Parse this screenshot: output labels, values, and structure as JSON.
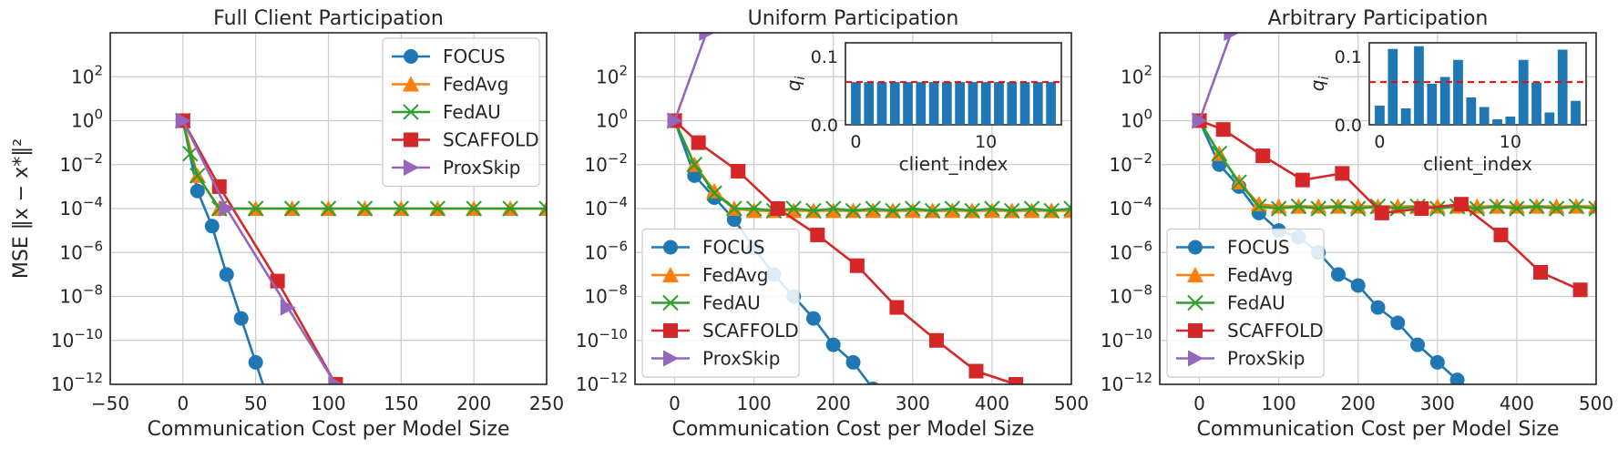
{
  "colors": {
    "FOCUS": "#1f77b4",
    "FedAvg": "#ff7f0e",
    "FedAU": "#2ca02c",
    "SCAFFOLD": "#d62728",
    "ProxSkip": "#9467bd",
    "grid": "#cccccc",
    "bar": "#1f77b4",
    "dashed": "#ff0000"
  },
  "chart_data": [
    {
      "type": "line",
      "title": "Full Client Participation",
      "xlabel": "Communication Cost per Model Size",
      "ylabel": "MSE ‖x − x*‖²",
      "yscale": "log",
      "xlim": [
        -50,
        250
      ],
      "ylim_exp": [
        -12,
        4
      ],
      "xticks": [
        "−50",
        "0",
        "50",
        "100",
        "150",
        "200",
        "250"
      ],
      "xtick_values": [
        -50,
        0,
        50,
        100,
        150,
        200,
        250
      ],
      "legend": "upper right",
      "series": [
        {
          "name": "FOCUS",
          "marker": "circle",
          "x": [
            0,
            10,
            20,
            30,
            40,
            50,
            60
          ],
          "log10y": [
            0,
            -3.2,
            -4.8,
            -7,
            -9,
            -11,
            -13
          ]
        },
        {
          "name": "FedAvg",
          "marker": "triangle",
          "x": [
            0,
            10,
            25,
            50,
            75,
            100,
            125,
            150,
            175,
            200,
            225,
            250
          ],
          "log10y": [
            0,
            -2.5,
            -4,
            -4,
            -4,
            -4,
            -4,
            -4,
            -4,
            -4,
            -4,
            -4
          ]
        },
        {
          "name": "FedAU",
          "marker": "x",
          "x": [
            0,
            5,
            10,
            25,
            50,
            75,
            100,
            125,
            150,
            175,
            200,
            225,
            250
          ],
          "log10y": [
            0,
            -1.5,
            -2.5,
            -4,
            -4,
            -4,
            -4,
            -4,
            -4,
            -4,
            -4,
            -4,
            -4
          ]
        },
        {
          "name": "SCAFFOLD",
          "marker": "square",
          "x": [
            0,
            25,
            65,
            105
          ],
          "log10y": [
            0,
            -3,
            -7.3,
            -12
          ]
        },
        {
          "name": "ProxSkip",
          "marker": "triangle-right",
          "x": [
            0,
            30,
            72,
            105
          ],
          "log10y": [
            0,
            -4,
            -8.5,
            -12
          ]
        }
      ]
    },
    {
      "type": "line",
      "title": "Uniform Participation",
      "xlabel": "Communication Cost per Model Size",
      "yscale": "log",
      "xlim": [
        -50,
        500
      ],
      "ylim_exp": [
        -12,
        4
      ],
      "xticks": [
        "0",
        "100",
        "200",
        "300",
        "400",
        "500"
      ],
      "xtick_values": [
        0,
        100,
        200,
        300,
        400,
        500
      ],
      "legend": "lower left",
      "series": [
        {
          "name": "FOCUS",
          "marker": "circle",
          "x": [
            0,
            25,
            50,
            75,
            100,
            125,
            150,
            175,
            200,
            225,
            250
          ],
          "log10y": [
            0,
            -2.5,
            -3.5,
            -4.5,
            -5.8,
            -7,
            -8,
            -9,
            -10.2,
            -11,
            -12.2
          ]
        },
        {
          "name": "FedAvg",
          "marker": "triangle",
          "x": [
            0,
            25,
            50,
            75,
            100,
            125,
            150,
            175,
            200,
            225,
            250,
            275,
            300,
            325,
            350,
            375,
            400,
            425,
            450,
            475,
            500
          ],
          "log10y": [
            0,
            -2,
            -3.2,
            -4,
            -4.1,
            -4.1,
            -4.1,
            -4.1,
            -4.1,
            -4.1,
            -4.1,
            -4.1,
            -4.1,
            -4.1,
            -4.1,
            -4.1,
            -4.1,
            -4.1,
            -4.1,
            -4.1,
            -4.1
          ]
        },
        {
          "name": "FedAU",
          "marker": "x",
          "x": [
            0,
            25,
            50,
            75,
            100,
            125,
            150,
            175,
            200,
            225,
            250,
            275,
            300,
            325,
            350,
            375,
            400,
            425,
            450,
            475,
            500
          ],
          "log10y": [
            0,
            -2,
            -3.3,
            -4,
            -4,
            -4.1,
            -4,
            -4.1,
            -4,
            -4.1,
            -4,
            -4.1,
            -4,
            -4.1,
            -4,
            -4.1,
            -4,
            -4.1,
            -4,
            -4.1,
            -4
          ]
        },
        {
          "name": "SCAFFOLD",
          "marker": "square",
          "x": [
            0,
            30,
            80,
            130,
            180,
            230,
            280,
            330,
            380,
            430,
            480
          ],
          "log10y": [
            0,
            -1,
            -2.3,
            -4,
            -5.2,
            -6.6,
            -8.5,
            -10,
            -11.4,
            -12,
            -12.5
          ]
        },
        {
          "name": "ProxSkip",
          "marker": "triangle-right",
          "x": [
            0,
            40
          ],
          "log10y": [
            0,
            4
          ]
        }
      ],
      "inset": {
        "ylabel": "q_i",
        "xlabel": "client_index",
        "yticks": [
          "0.0",
          "0.1"
        ],
        "xticks": [
          "0",
          "10"
        ],
        "ylim": [
          0,
          0.12
        ],
        "threshold": 0.0625,
        "values": [
          0.0625,
          0.0625,
          0.0625,
          0.0625,
          0.0625,
          0.0625,
          0.0625,
          0.0625,
          0.0625,
          0.0625,
          0.0625,
          0.0625,
          0.0625,
          0.0625,
          0.0625,
          0.0625
        ]
      }
    },
    {
      "type": "line",
      "title": "Arbitrary Participation",
      "xlabel": "Communication Cost per Model Size",
      "yscale": "log",
      "xlim": [
        -50,
        500
      ],
      "ylim_exp": [
        -12,
        4
      ],
      "xticks": [
        "0",
        "100",
        "200",
        "300",
        "400",
        "500"
      ],
      "xtick_values": [
        0,
        100,
        200,
        300,
        400,
        500
      ],
      "legend": "lower left",
      "series": [
        {
          "name": "FOCUS",
          "marker": "circle",
          "x": [
            0,
            25,
            50,
            75,
            100,
            125,
            150,
            175,
            200,
            225,
            250,
            275,
            300,
            325,
            350
          ],
          "log10y": [
            0,
            -2,
            -3,
            -4.2,
            -5,
            -5.3,
            -6,
            -7,
            -7.5,
            -8.5,
            -9.2,
            -10.2,
            -11,
            -11.8,
            -12.5
          ]
        },
        {
          "name": "FedAvg",
          "marker": "triangle",
          "x": [
            0,
            25,
            50,
            75,
            100,
            125,
            150,
            175,
            200,
            225,
            250,
            275,
            300,
            325,
            350,
            375,
            400,
            425,
            450,
            475,
            500
          ],
          "log10y": [
            0,
            -1.5,
            -2.8,
            -3.8,
            -3.9,
            -3.9,
            -3.9,
            -3.9,
            -3.9,
            -3.9,
            -3.9,
            -3.9,
            -3.9,
            -3.9,
            -3.9,
            -3.9,
            -3.9,
            -3.9,
            -3.9,
            -3.9,
            -3.9
          ]
        },
        {
          "name": "FedAU",
          "marker": "x",
          "x": [
            0,
            25,
            50,
            75,
            100,
            125,
            150,
            175,
            200,
            225,
            250,
            275,
            300,
            325,
            350,
            375,
            400,
            425,
            450,
            475,
            500
          ],
          "log10y": [
            0,
            -1.5,
            -2.8,
            -3.9,
            -4,
            -3.9,
            -4,
            -3.9,
            -4,
            -3.9,
            -4,
            -3.9,
            -4,
            -3.9,
            -4,
            -3.9,
            -4,
            -3.9,
            -4,
            -3.9,
            -4
          ]
        },
        {
          "name": "SCAFFOLD",
          "marker": "square",
          "x": [
            0,
            30,
            80,
            130,
            180,
            230,
            280,
            330,
            380,
            430,
            480
          ],
          "log10y": [
            0,
            -0.4,
            -1.6,
            -2.7,
            -2.4,
            -4.2,
            -4,
            -3.8,
            -5.2,
            -6.9,
            -7.7
          ]
        },
        {
          "name": "ProxSkip",
          "marker": "triangle-right",
          "x": [
            0,
            40
          ],
          "log10y": [
            0,
            4
          ]
        }
      ],
      "inset": {
        "ylabel": "q_i",
        "xlabel": "client_index",
        "yticks": [
          "0.0",
          "0.1"
        ],
        "xticks": [
          "0",
          "10"
        ],
        "ylim": [
          0,
          0.12
        ],
        "threshold": 0.0625,
        "values": [
          0.028,
          0.111,
          0.024,
          0.115,
          0.06,
          0.07,
          0.095,
          0.04,
          0.026,
          0.008,
          0.012,
          0.095,
          0.062,
          0.018,
          0.11,
          0.035
        ]
      }
    }
  ],
  "panels": [
    {
      "title": "Full Client Participation",
      "xlabel": "Communication Cost per Model Size",
      "ylabel": "MSE ‖x − x*‖²"
    },
    {
      "title": "Uniform Participation",
      "xlabel": "Communication Cost per Model Size",
      "ylabel": ""
    },
    {
      "title": "Arbitrary Participation",
      "xlabel": "Communication Cost per Model Size",
      "ylabel": ""
    }
  ]
}
